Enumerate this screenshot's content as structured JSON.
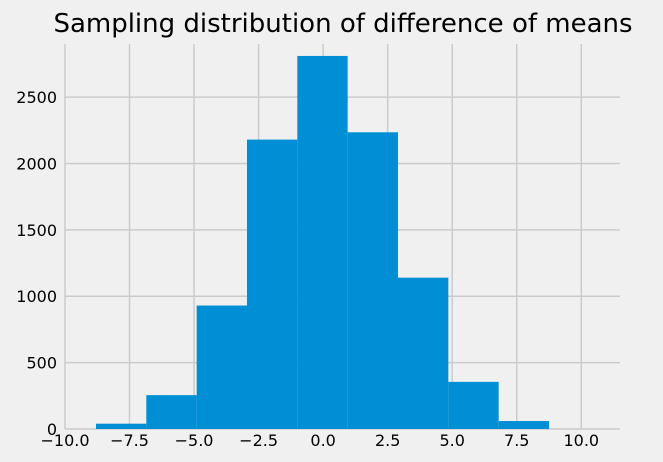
{
  "chart_data": {
    "type": "bar",
    "title": "Sampling distribution of difference of means",
    "xlabel": "",
    "ylabel": "",
    "xlim": [
      -10,
      11.5
    ],
    "ylim": [
      0,
      2900
    ],
    "grid": true,
    "bar_color": "#008fd5",
    "background_color": "#f0f0f0",
    "grid_color": "#cbcbcb",
    "x_ticks": [
      -10.0,
      -7.5,
      -5.0,
      -2.5,
      0.0,
      2.5,
      5.0,
      7.5,
      10.0
    ],
    "x_tick_labels": [
      "−10.0",
      "−7.5",
      "−5.0",
      "−2.5",
      "0.0",
      "2.5",
      "5.0",
      "7.5",
      "10.0"
    ],
    "y_ticks": [
      0,
      500,
      1000,
      1500,
      2000,
      2500
    ],
    "y_tick_labels": [
      "0",
      "500",
      "1000",
      "1500",
      "2000",
      "2500"
    ],
    "bin_edges": [
      -8.8,
      -6.85,
      -4.9,
      -2.95,
      -1.0,
      0.95,
      2.9,
      4.85,
      6.8,
      8.75
    ],
    "values": [
      40,
      255,
      930,
      2180,
      2810,
      2235,
      1140,
      355,
      60
    ]
  }
}
